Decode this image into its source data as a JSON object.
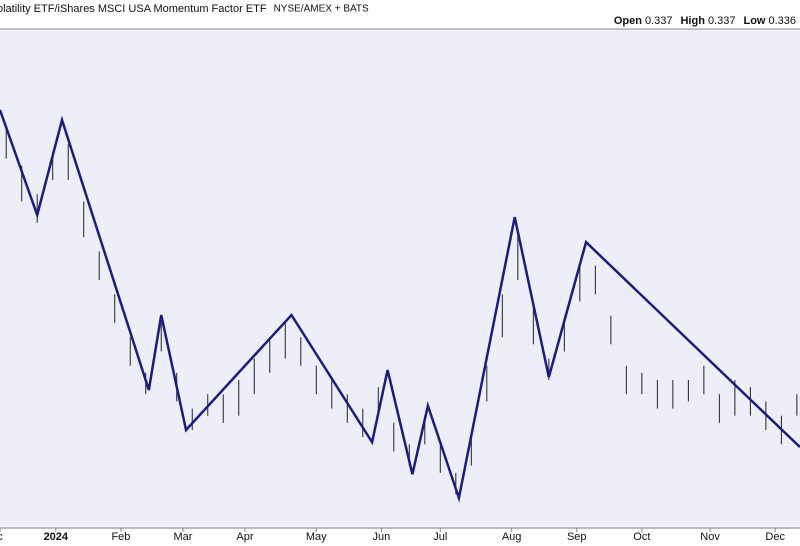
{
  "chart_data": {
    "type": "ohlc",
    "title": "olatility ETF/iShares MSCI USA Momentum Factor ETF",
    "exchange": "NYSE/AMEX + BATS",
    "quote": [
      {
        "label": "Open",
        "value": 0.337
      },
      {
        "label": "High",
        "value": 0.337
      },
      {
        "label": "Low",
        "value": 0.336
      }
    ],
    "xlim": [
      0,
      258
    ],
    "ylim": [
      0.32,
      0.39
    ],
    "xticks": [
      {
        "value": 0,
        "label": "c"
      },
      {
        "value": 18,
        "label": "2024"
      },
      {
        "value": 39,
        "label": "Feb"
      },
      {
        "value": 59,
        "label": "Mar"
      },
      {
        "value": 79,
        "label": "Apr"
      },
      {
        "value": 102,
        "label": "May"
      },
      {
        "value": 123,
        "label": "Jun"
      },
      {
        "value": 142,
        "label": "Jul"
      },
      {
        "value": 165,
        "label": "Aug"
      },
      {
        "value": 186,
        "label": "Sep"
      },
      {
        "value": 207,
        "label": "Oct"
      },
      {
        "value": 229,
        "label": "Nov"
      },
      {
        "value": 250,
        "label": "Dec"
      }
    ],
    "bars": {
      "color": "#222222",
      "x": [
        2,
        7,
        12,
        17,
        22,
        27,
        32,
        37,
        42,
        47,
        52,
        57,
        62,
        67,
        72,
        77,
        82,
        87,
        92,
        97,
        102,
        107,
        112,
        117,
        122,
        127,
        132,
        137,
        142,
        147,
        152,
        157,
        162,
        167,
        172,
        177,
        182,
        187,
        192,
        197,
        202,
        207,
        212,
        217,
        222,
        227,
        232,
        237,
        242,
        247,
        252,
        257
      ],
      "high": [
        0.376,
        0.371,
        0.367,
        0.373,
        0.374,
        0.366,
        0.359,
        0.353,
        0.347,
        0.342,
        0.349,
        0.342,
        0.337,
        0.339,
        0.339,
        0.341,
        0.344,
        0.347,
        0.349,
        0.347,
        0.343,
        0.341,
        0.339,
        0.337,
        0.34,
        0.335,
        0.332,
        0.336,
        0.332,
        0.328,
        0.333,
        0.343,
        0.353,
        0.362,
        0.352,
        0.344,
        0.349,
        0.357,
        0.357,
        0.35,
        0.343,
        0.342,
        0.341,
        0.341,
        0.341,
        0.343,
        0.339,
        0.341,
        0.34,
        0.338,
        0.336,
        0.339
      ],
      "low": [
        0.372,
        0.366,
        0.363,
        0.369,
        0.369,
        0.361,
        0.355,
        0.349,
        0.343,
        0.339,
        0.345,
        0.338,
        0.334,
        0.336,
        0.335,
        0.336,
        0.339,
        0.342,
        0.344,
        0.343,
        0.339,
        0.337,
        0.335,
        0.333,
        0.336,
        0.331,
        0.329,
        0.332,
        0.328,
        0.325,
        0.329,
        0.338,
        0.347,
        0.355,
        0.346,
        0.341,
        0.345,
        0.352,
        0.353,
        0.346,
        0.339,
        0.339,
        0.337,
        0.337,
        0.338,
        0.339,
        0.335,
        0.336,
        0.336,
        0.334,
        0.332,
        0.336
      ]
    },
    "zigzag": {
      "color": "#1c1c80",
      "x": [
        0,
        12,
        20,
        48,
        52,
        60,
        94,
        120,
        125,
        133,
        138,
        148,
        166,
        177,
        189,
        258
      ],
      "values": [
        0.3788,
        0.3641,
        0.3774,
        0.3396,
        0.3501,
        0.334,
        0.3501,
        0.3323,
        0.3424,
        0.3278,
        0.3374,
        0.3245,
        0.3638,
        0.3414,
        0.3603,
        0.3316
      ]
    }
  }
}
